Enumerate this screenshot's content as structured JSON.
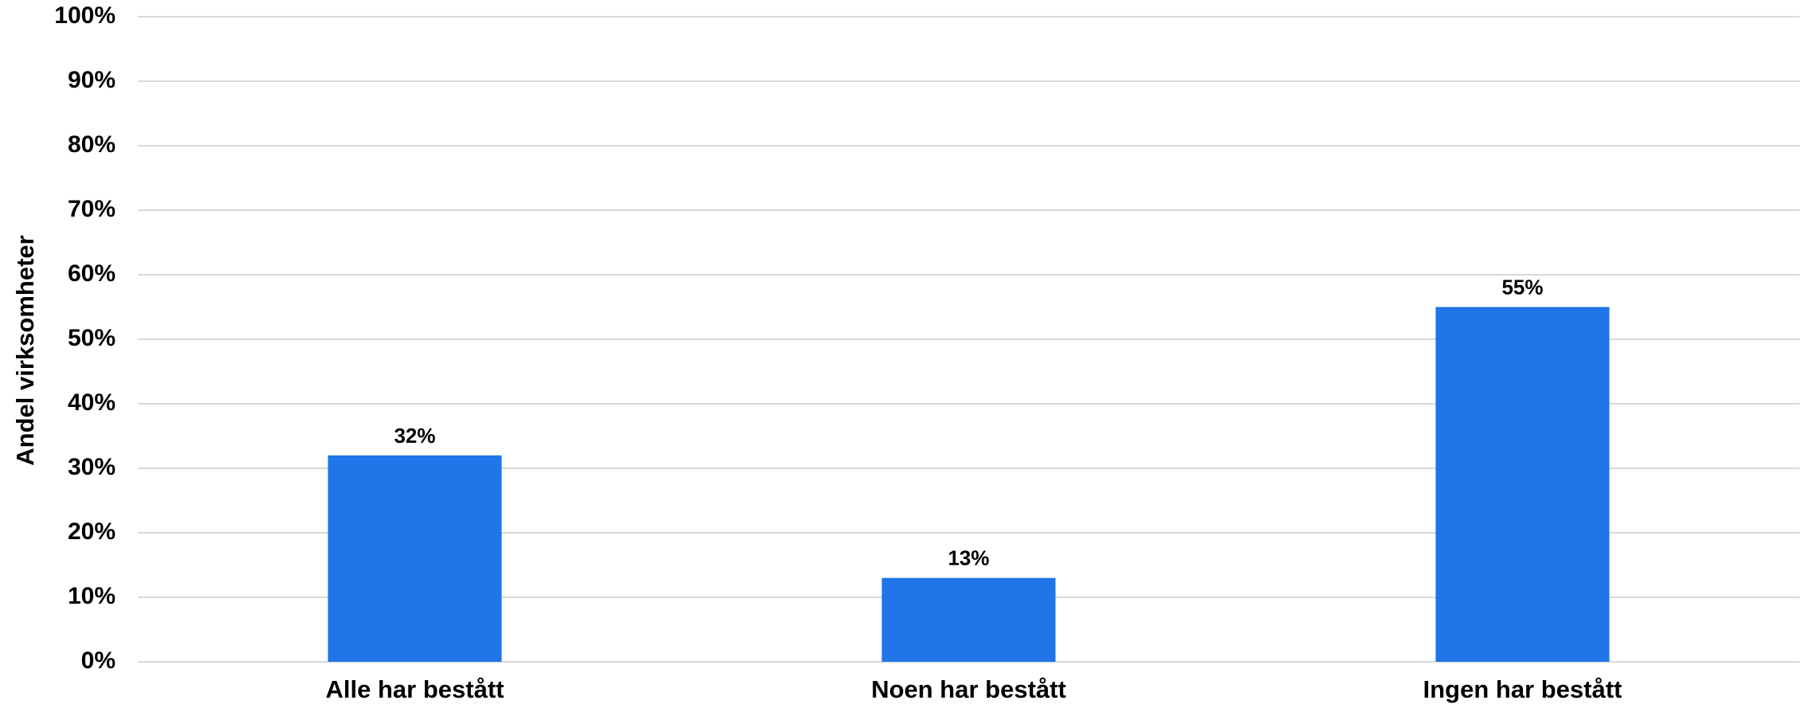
{
  "chart_data": {
    "type": "bar",
    "title": "",
    "xlabel": "",
    "ylabel": "Andel virksomheter",
    "categories": [
      "Alle har bestått",
      "Noen har bestått",
      "Ingen har bestått"
    ],
    "values": [
      32,
      13,
      55
    ],
    "data_labels": [
      "32%",
      "13%",
      "55%"
    ],
    "ylim": [
      0,
      100
    ],
    "yticks": [
      0,
      10,
      20,
      30,
      40,
      50,
      60,
      70,
      80,
      90,
      100
    ],
    "ytick_labels": [
      "0%",
      "10%",
      "20%",
      "30%",
      "40%",
      "50%",
      "60%",
      "70%",
      "80%",
      "90%",
      "100%"
    ],
    "grid": true,
    "legend": "none",
    "colors": {
      "bar": "#2075E8",
      "grid": "#D9D9D9",
      "text": "#000000"
    }
  }
}
